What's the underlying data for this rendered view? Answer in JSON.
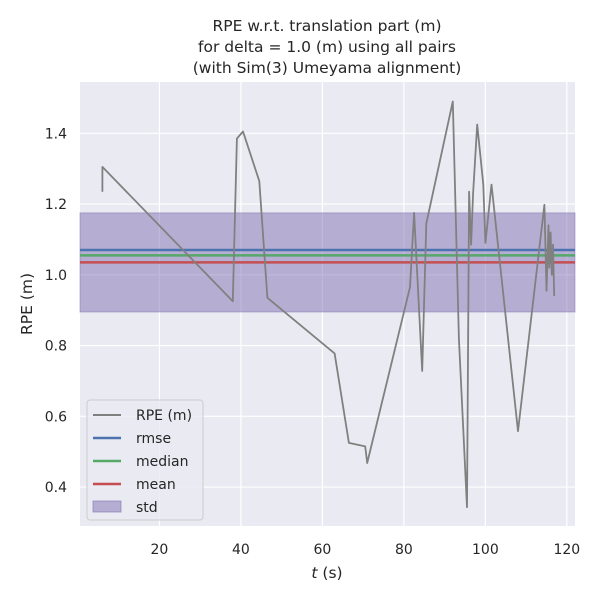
{
  "chart_data": {
    "type": "line",
    "title_lines": [
      "RPE w.r.t. translation part (m)",
      "for delta = 1.0 (m) using all pairs",
      "(with Sim(3) Umeyama alignment)"
    ],
    "xlabel_var": "t",
    "xlabel_unit": " (s)",
    "ylabel": "RPE (m)",
    "xlim": [
      0.5,
      122
    ],
    "ylim": [
      0.29,
      1.545
    ],
    "x_ticks": [
      20,
      40,
      60,
      80,
      100,
      120
    ],
    "y_ticks": [
      0.4,
      0.6,
      0.8,
      1.0,
      1.2,
      1.4
    ],
    "x_tick_labels": [
      "20",
      "40",
      "60",
      "80",
      "100",
      "120"
    ],
    "y_tick_labels": [
      "0.4",
      "0.6",
      "0.8",
      "1.0",
      "1.2",
      "1.4"
    ],
    "grid": true,
    "legend_position": "lower-left",
    "series": [
      {
        "name": "RPE (m)",
        "color": "#808080",
        "x": [
          6.0,
          6.0,
          38.0,
          39.0,
          40.5,
          44.5,
          46.5,
          63.0,
          66.5,
          70.5,
          71.0,
          81.5,
          82.5,
          84.5,
          85.5,
          92.0,
          93.5,
          95.5,
          96.0,
          96.5,
          97.0,
          98.0,
          99.5,
          100.0,
          101.5,
          108.0,
          114.5,
          115.0,
          115.5,
          115.7,
          116.0,
          116.3,
          116.6,
          116.9
        ],
        "y": [
          1.235,
          1.305,
          0.925,
          1.385,
          1.405,
          1.265,
          0.935,
          0.778,
          0.525,
          0.515,
          0.468,
          0.965,
          1.175,
          0.728,
          1.145,
          1.49,
          0.82,
          0.343,
          1.235,
          1.085,
          1.23,
          1.425,
          1.255,
          1.09,
          1.255,
          0.558,
          1.198,
          0.955,
          1.14,
          1.02,
          1.12,
          1.0,
          1.085,
          0.94
        ]
      }
    ],
    "stats": {
      "rmse": {
        "name": "rmse",
        "value": 1.07,
        "color": "#4c72b0"
      },
      "median": {
        "name": "median",
        "value": 1.055,
        "color": "#55a868"
      },
      "mean": {
        "name": "mean",
        "value": 1.035,
        "color": "#c44e52"
      },
      "std": {
        "name": "std",
        "low": 0.895,
        "high": 1.175,
        "color": "#8172b2"
      }
    },
    "background_color": "#eaeaf2"
  }
}
